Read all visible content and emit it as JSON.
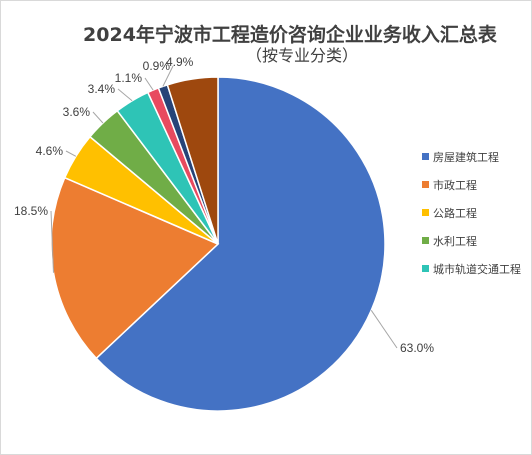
{
  "chart_data": {
    "type": "pie",
    "title_line1": "2024年宁波市工程造价咨询企业业务收入汇总表",
    "title_line2": "（按专业分类）",
    "slices": [
      {
        "name": "房屋建筑工程",
        "value": 63.0,
        "label": "63.0%",
        "color": "#4472C4"
      },
      {
        "name": "市政工程",
        "value": 18.5,
        "label": "18.5%",
        "color": "#ED7D31"
      },
      {
        "name": "公路工程",
        "value": 4.6,
        "label": "4.6%",
        "color": "#FFC000"
      },
      {
        "name": "水利工程",
        "value": 3.6,
        "label": "3.6%",
        "color": "#70AD47"
      },
      {
        "name": "城市轨道交通工程",
        "value": 3.4,
        "label": "3.4%",
        "color": "#2EC4B6"
      },
      {
        "name": "",
        "value": 1.1,
        "label": "1.1%",
        "color": "#E84A5F"
      },
      {
        "name": "",
        "value": 0.9,
        "label": "0.9%",
        "color": "#264478"
      },
      {
        "name": "",
        "value": 4.9,
        "label": "4.9%",
        "color": "#9E480E"
      }
    ],
    "legend_position": "right"
  }
}
